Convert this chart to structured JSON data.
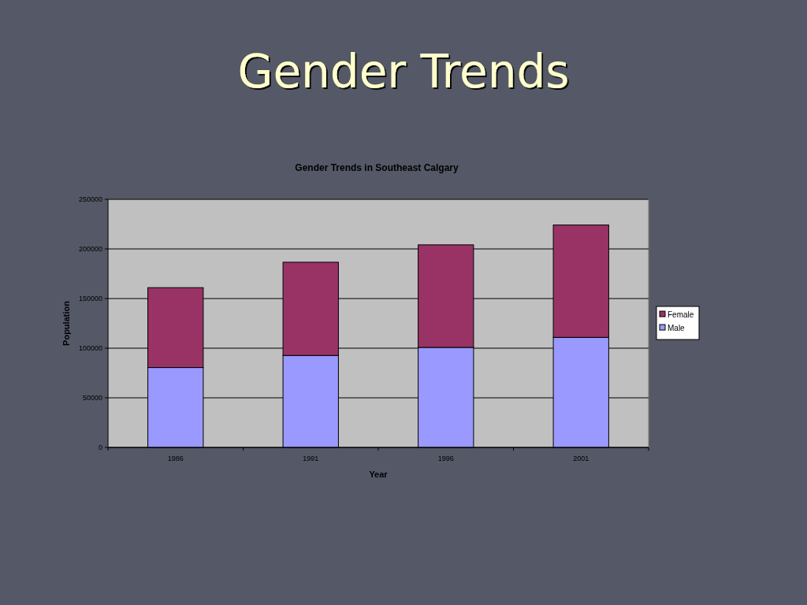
{
  "chart_data": {
    "type": "bar",
    "title": "Gender Trends",
    "subtitle": "Gender Trends in Southeast Calgary",
    "xlabel": "Year",
    "ylabel": "Population",
    "categories": [
      "1986",
      "1991",
      "1996",
      "2001"
    ],
    "series": [
      {
        "name": "Male",
        "color": "#9999ff",
        "values": [
          80500,
          92700,
          100800,
          110900
        ]
      },
      {
        "name": "Female",
        "color": "#993366",
        "values": [
          80500,
          93900,
          103300,
          113200
        ]
      }
    ],
    "stacked": true,
    "ylim": [
      0,
      250000
    ],
    "yticks": [
      0,
      50000,
      100000,
      150000,
      200000,
      250000
    ],
    "grid": "y",
    "legend": "right"
  }
}
